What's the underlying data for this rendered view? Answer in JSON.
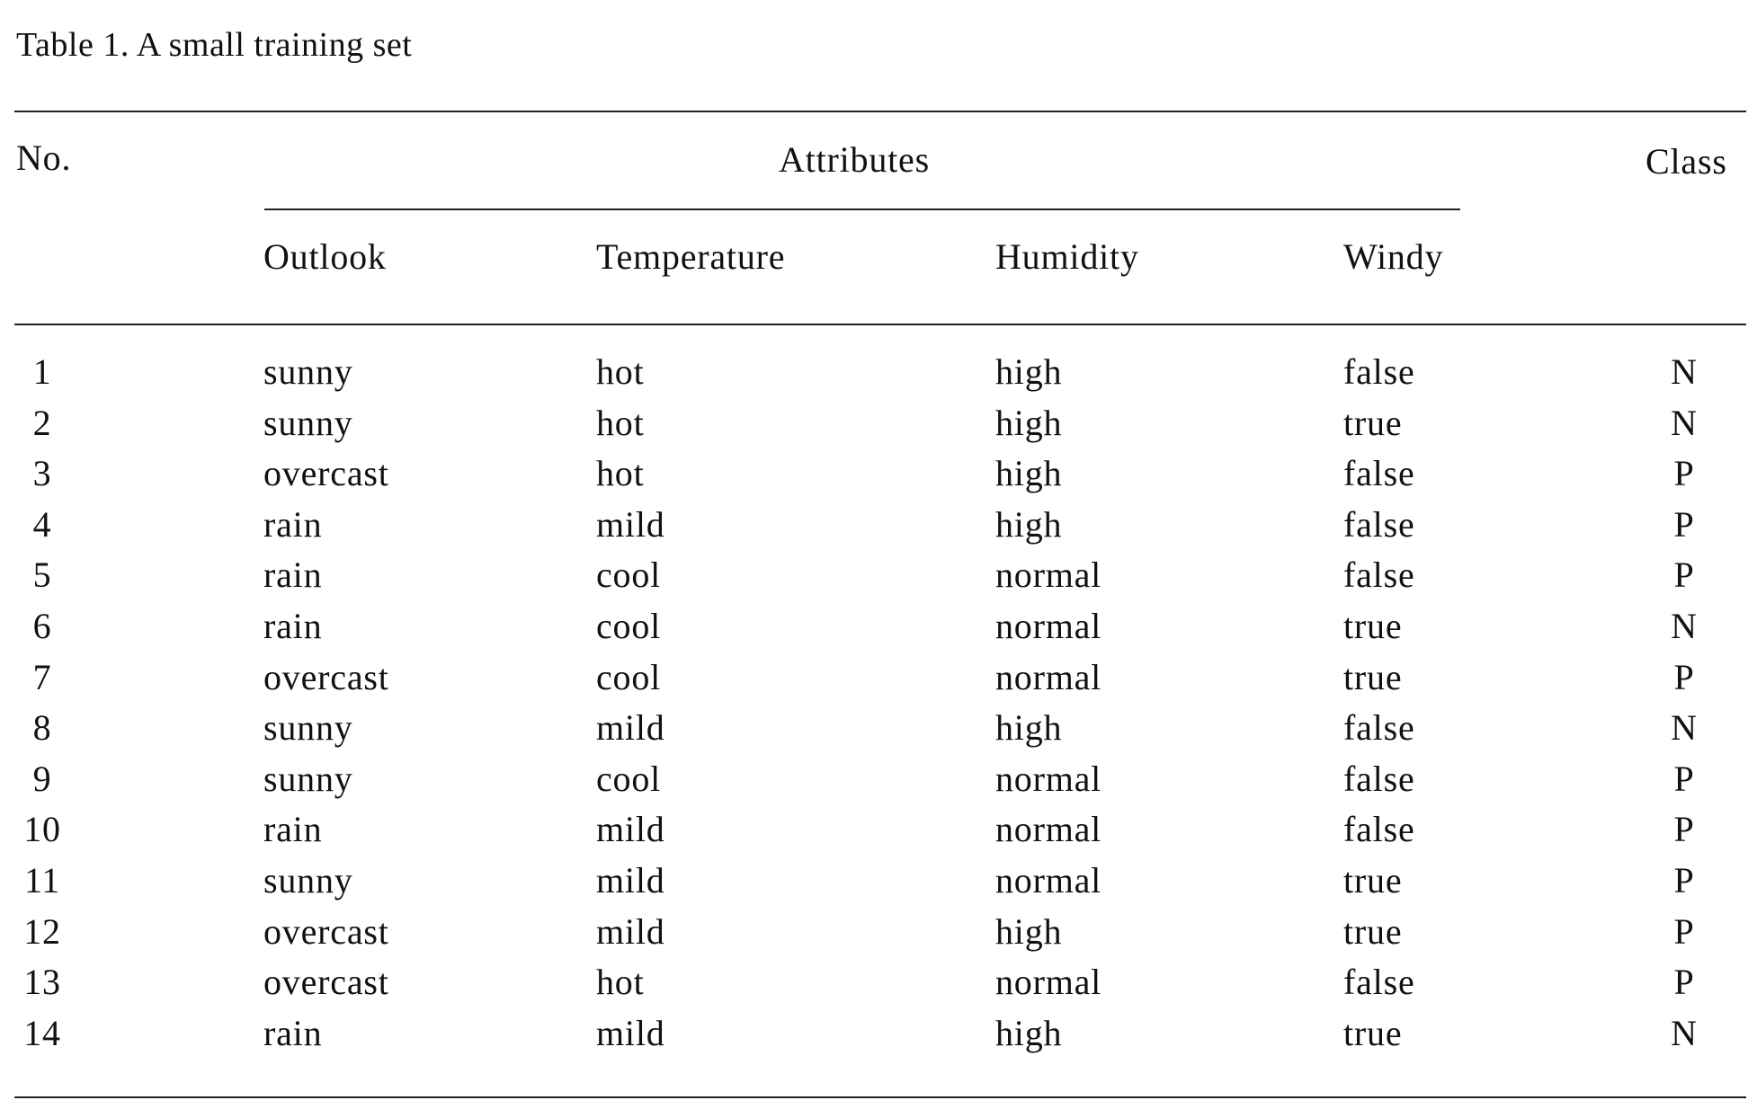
{
  "caption": "Table 1. A small training set",
  "headers": {
    "no": "No.",
    "attributes": "Attributes",
    "class": "Class",
    "attribute_columns": [
      "Outlook",
      "Temperature",
      "Humidity",
      "Windy"
    ]
  },
  "rows": [
    {
      "no": "1",
      "outlook": "sunny",
      "temperature": "hot",
      "humidity": "high",
      "windy": "false",
      "class": "N"
    },
    {
      "no": "2",
      "outlook": "sunny",
      "temperature": "hot",
      "humidity": "high",
      "windy": "true",
      "class": "N"
    },
    {
      "no": "3",
      "outlook": "overcast",
      "temperature": "hot",
      "humidity": "high",
      "windy": "false",
      "class": "P"
    },
    {
      "no": "4",
      "outlook": "rain",
      "temperature": "mild",
      "humidity": "high",
      "windy": "false",
      "class": "P"
    },
    {
      "no": "5",
      "outlook": "rain",
      "temperature": "cool",
      "humidity": "normal",
      "windy": "false",
      "class": "P"
    },
    {
      "no": "6",
      "outlook": "rain",
      "temperature": "cool",
      "humidity": "normal",
      "windy": "true",
      "class": "N"
    },
    {
      "no": "7",
      "outlook": "overcast",
      "temperature": "cool",
      "humidity": "normal",
      "windy": "true",
      "class": "P"
    },
    {
      "no": "8",
      "outlook": "sunny",
      "temperature": "mild",
      "humidity": "high",
      "windy": "false",
      "class": "N"
    },
    {
      "no": "9",
      "outlook": "sunny",
      "temperature": "cool",
      "humidity": "normal",
      "windy": "false",
      "class": "P"
    },
    {
      "no": "10",
      "outlook": "rain",
      "temperature": "mild",
      "humidity": "normal",
      "windy": "false",
      "class": "P"
    },
    {
      "no": "11",
      "outlook": "sunny",
      "temperature": "mild",
      "humidity": "normal",
      "windy": "true",
      "class": "P"
    },
    {
      "no": "12",
      "outlook": "overcast",
      "temperature": "mild",
      "humidity": "high",
      "windy": "true",
      "class": "P"
    },
    {
      "no": "13",
      "outlook": "overcast",
      "temperature": "hot",
      "humidity": "normal",
      "windy": "false",
      "class": "P"
    },
    {
      "no": "14",
      "outlook": "rain",
      "temperature": "mild",
      "humidity": "high",
      "windy": "true",
      "class": "N"
    }
  ]
}
